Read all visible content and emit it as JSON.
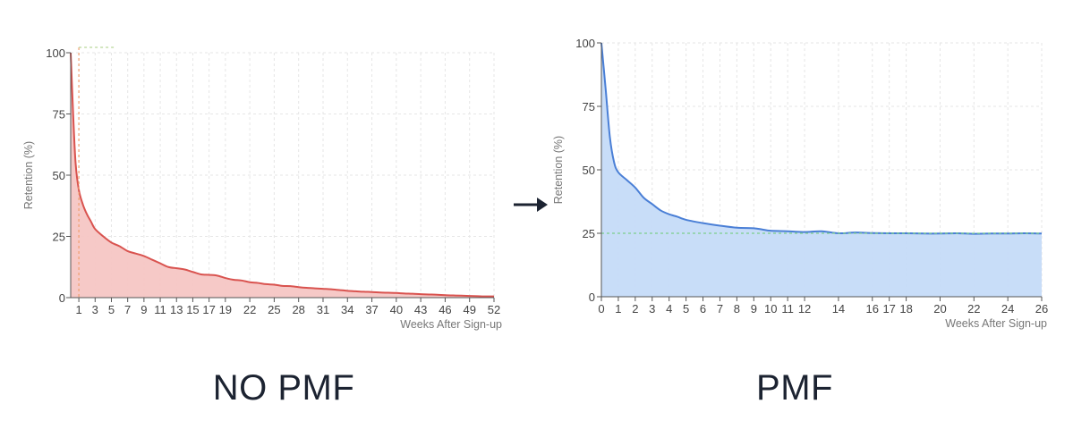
{
  "chart_data": [
    {
      "type": "area",
      "caption": "NO PMF",
      "xlabel": "Weeks After Sign-up",
      "ylabel": "Retention (%)",
      "xlim": [
        0,
        52
      ],
      "ylim": [
        0,
        100
      ],
      "y_ticks": [
        0,
        25,
        50,
        75,
        100
      ],
      "x_ticks": [
        1,
        3,
        5,
        7,
        9,
        11,
        13,
        15,
        17,
        19,
        22,
        25,
        28,
        31,
        34,
        37,
        40,
        43,
        46,
        49,
        52
      ],
      "grid": true,
      "color": "#d9534f",
      "fill": "#f6c6c4",
      "points": [
        [
          0,
          100
        ],
        [
          0.3,
          75
        ],
        [
          0.6,
          55
        ],
        [
          1,
          44
        ],
        [
          1.5,
          38
        ],
        [
          2,
          34
        ],
        [
          2.5,
          31
        ],
        [
          3,
          28
        ],
        [
          4,
          25
        ],
        [
          5,
          22.5
        ],
        [
          6,
          21
        ],
        [
          7,
          19
        ],
        [
          8,
          18
        ],
        [
          9,
          17
        ],
        [
          10,
          15.5
        ],
        [
          11,
          14
        ],
        [
          12,
          12.5
        ],
        [
          13,
          12
        ],
        [
          14,
          11.5
        ],
        [
          15,
          10.5
        ],
        [
          16,
          9.5
        ],
        [
          17,
          9.3
        ],
        [
          18,
          9
        ],
        [
          19,
          8
        ],
        [
          20,
          7.3
        ],
        [
          21,
          7
        ],
        [
          22,
          6.3
        ],
        [
          23,
          6
        ],
        [
          24,
          5.5
        ],
        [
          25,
          5.3
        ],
        [
          26,
          4.8
        ],
        [
          27,
          4.7
        ],
        [
          28,
          4.3
        ],
        [
          29,
          4
        ],
        [
          30,
          3.8
        ],
        [
          31,
          3.6
        ],
        [
          32,
          3.4
        ],
        [
          33,
          3.1
        ],
        [
          34,
          2.8
        ],
        [
          35,
          2.6
        ],
        [
          36,
          2.4
        ],
        [
          37,
          2.3
        ],
        [
          38,
          2.1
        ],
        [
          39,
          2
        ],
        [
          40,
          1.9
        ],
        [
          41,
          1.7
        ],
        [
          42,
          1.6
        ],
        [
          43,
          1.4
        ],
        [
          44,
          1.3
        ],
        [
          45,
          1.2
        ],
        [
          46,
          1
        ],
        [
          47,
          0.9
        ],
        [
          48,
          0.8
        ],
        [
          49,
          0.7
        ],
        [
          50,
          0.6
        ],
        [
          51,
          0.5
        ],
        [
          52,
          0.5
        ]
      ],
      "reference_x": 1,
      "reference_line_color": "#f0a070"
    },
    {
      "type": "area",
      "caption": "PMF",
      "xlabel": "Weeks After Sign-up",
      "ylabel": "Retention (%)",
      "xlim": [
        0,
        26
      ],
      "ylim": [
        0,
        100
      ],
      "y_ticks": [
        0,
        25,
        50,
        75,
        100
      ],
      "x_ticks": [
        0,
        1,
        2,
        3,
        4,
        5,
        6,
        7,
        8,
        9,
        10,
        11,
        12,
        14,
        16,
        17,
        18,
        20,
        22,
        24,
        26
      ],
      "grid": true,
      "color": "#4a7fd6",
      "fill": "#c5dbf8",
      "points": [
        [
          0,
          100
        ],
        [
          0.25,
          82
        ],
        [
          0.5,
          63
        ],
        [
          0.75,
          53
        ],
        [
          1,
          49
        ],
        [
          1.5,
          46
        ],
        [
          2,
          43
        ],
        [
          2.5,
          39
        ],
        [
          3,
          36.5
        ],
        [
          3.5,
          34
        ],
        [
          4,
          32.5
        ],
        [
          4.5,
          31.5
        ],
        [
          5,
          30.3
        ],
        [
          6,
          29
        ],
        [
          7,
          28
        ],
        [
          8,
          27.2
        ],
        [
          9,
          27
        ],
        [
          9.5,
          26.5
        ],
        [
          10,
          26
        ],
        [
          11,
          25.8
        ],
        [
          12,
          25.5
        ],
        [
          13,
          25.8
        ],
        [
          14,
          25
        ],
        [
          15,
          25.3
        ],
        [
          16,
          25.1
        ],
        [
          17,
          25
        ],
        [
          18,
          25
        ],
        [
          19,
          24.9
        ],
        [
          20,
          24.9
        ],
        [
          21,
          25
        ],
        [
          22,
          24.8
        ],
        [
          23,
          24.9
        ],
        [
          24,
          24.9
        ],
        [
          25,
          25
        ],
        [
          26,
          24.9
        ]
      ],
      "reference_y": 25,
      "reference_line_color": "#7ccf8c"
    }
  ],
  "arrow_glyph": "→"
}
